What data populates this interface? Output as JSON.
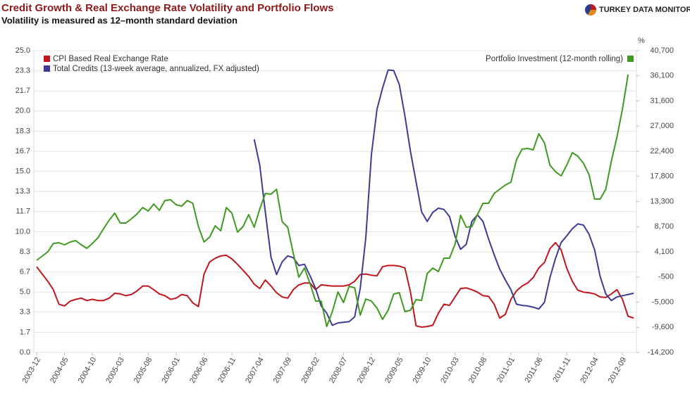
{
  "chart_data": {
    "type": "line",
    "title": "Credit Growth & Real Exchange Rate Volatility and Portfolio Flows",
    "subtitle": "Volatility is measured as 12–month standard deviation",
    "brand": "TURKEY DATA MONITOR",
    "y2_unit_label": "%",
    "grid": true,
    "categories": [
      "2003-12",
      null,
      null,
      null,
      null,
      "2004-05",
      null,
      null,
      null,
      null,
      "2004-10",
      null,
      null,
      null,
      null,
      "2005-03",
      null,
      null,
      null,
      null,
      "2005-08",
      null,
      null,
      null,
      null,
      "2006-01",
      null,
      null,
      null,
      null,
      "2006-06",
      null,
      null,
      null,
      null,
      "2006-11",
      null,
      null,
      null,
      null,
      "2007-04",
      null,
      null,
      null,
      null,
      "2007-09",
      null,
      null,
      null,
      null,
      "2008-02",
      null,
      null,
      null,
      null,
      "2008-07",
      null,
      null,
      null,
      null,
      "2008-12",
      null,
      null,
      null,
      null,
      "2009-05",
      null,
      null,
      null,
      null,
      "2009-10",
      null,
      null,
      null,
      null,
      "2010-03",
      null,
      null,
      null,
      null,
      "2010-08",
      null,
      null,
      null,
      null,
      "2011-01",
      null,
      null,
      null,
      null,
      "2011-06",
      null,
      null,
      null,
      null,
      "2011-11",
      null,
      null,
      null,
      null,
      "2012-04",
      null,
      null,
      null,
      null,
      "2012-09",
      null,
      null
    ],
    "ylim": [
      0,
      25
    ],
    "yticks": [
      {
        "value": 0,
        "label": "0.0"
      },
      {
        "value": 1.6667,
        "label": "1.7"
      },
      {
        "value": 3.3333,
        "label": "3.3"
      },
      {
        "value": 5,
        "label": "5.0"
      },
      {
        "value": 6.6667,
        "label": "6.7"
      },
      {
        "value": 8.3333,
        "label": "8.3"
      },
      {
        "value": 10,
        "label": "10.0"
      },
      {
        "value": 11.6667,
        "label": "11.7"
      },
      {
        "value": 13.3333,
        "label": "13.3"
      },
      {
        "value": 15,
        "label": "15.0"
      },
      {
        "value": 16.6667,
        "label": "16.7"
      },
      {
        "value": 18.3333,
        "label": "18.3"
      },
      {
        "value": 20,
        "label": "20.0"
      },
      {
        "value": 21.6667,
        "label": "21.7"
      },
      {
        "value": 23.3333,
        "label": "23.3"
      },
      {
        "value": 25,
        "label": "25.0"
      }
    ],
    "y2lim": [
      -14200,
      40700
    ],
    "y2ticks": [
      {
        "value": -14200,
        "label": "-14,200"
      },
      {
        "value": -9625,
        "label": "-9,600"
      },
      {
        "value": -5050,
        "label": "-5,000"
      },
      {
        "value": -475,
        "label": "-500"
      },
      {
        "value": 4100,
        "label": "4,100"
      },
      {
        "value": 8675,
        "label": "8,700"
      },
      {
        "value": 13250,
        "label": "13,300"
      },
      {
        "value": 17825,
        "label": "17,800"
      },
      {
        "value": 22400,
        "label": "22,400"
      },
      {
        "value": 26975,
        "label": "27,000"
      },
      {
        "value": 31550,
        "label": "31,600"
      },
      {
        "value": 36125,
        "label": "36,100"
      },
      {
        "value": 40700,
        "label": "40,700"
      }
    ],
    "series": [
      {
        "name": "CPI Based Real Exchange Rate",
        "color": "#c0161d",
        "legend": "left",
        "values": [
          7.1,
          6.5,
          5.9,
          5.2,
          4.0,
          3.85,
          4.25,
          4.4,
          4.5,
          4.3,
          4.4,
          4.3,
          4.3,
          4.5,
          4.9,
          4.85,
          4.7,
          4.8,
          5.1,
          5.5,
          5.5,
          5.2,
          4.85,
          4.7,
          4.4,
          4.5,
          4.8,
          4.7,
          4.1,
          3.8,
          6.5,
          7.5,
          7.8,
          8.0,
          8.05,
          7.75,
          7.3,
          6.8,
          6.3,
          5.65,
          5.3,
          6.0,
          5.5,
          4.95,
          4.6,
          4.5,
          5.2,
          5.6,
          5.75,
          5.75,
          5.2,
          5.6,
          5.55,
          5.5,
          5.5,
          5.5,
          5.6,
          5.9,
          6.45,
          6.5,
          6.4,
          6.35,
          7.1,
          7.2,
          7.2,
          7.15,
          7.0,
          5.0,
          2.2,
          2.1,
          2.15,
          2.25,
          3.25,
          4.0,
          3.9,
          4.6,
          5.3,
          5.35,
          5.2,
          5.0,
          4.7,
          4.65,
          4.0,
          2.85,
          3.15,
          4.4,
          5.1,
          5.5,
          5.75,
          6.2,
          7.0,
          7.45,
          8.6,
          9.1,
          8.5,
          7.0,
          5.9,
          5.15,
          5.0,
          4.95,
          4.85,
          4.6,
          4.55,
          4.85,
          5.2,
          4.4,
          3.0,
          2.85
        ]
      },
      {
        "name": "Total Credits (13-week average, annualized, FX adjusted)",
        "color": "#3c3c96",
        "legend": "left",
        "values": [
          null,
          null,
          null,
          null,
          null,
          null,
          null,
          null,
          null,
          null,
          null,
          null,
          null,
          null,
          null,
          null,
          null,
          null,
          null,
          null,
          null,
          null,
          null,
          null,
          null,
          null,
          null,
          null,
          null,
          null,
          null,
          null,
          null,
          null,
          null,
          null,
          null,
          null,
          null,
          17.65,
          15.5,
          11.6,
          7.9,
          6.45,
          7.5,
          8.0,
          7.85,
          7.2,
          7.3,
          6.35,
          5.3,
          3.85,
          3.25,
          2.25,
          2.45,
          2.5,
          2.55,
          2.95,
          5.3,
          9.5,
          16.4,
          20.15,
          21.9,
          23.4,
          23.35,
          22.2,
          19.6,
          16.65,
          14.15,
          11.65,
          10.85,
          11.6,
          11.95,
          11.85,
          11.25,
          9.6,
          8.55,
          8.95,
          10.85,
          11.4,
          10.85,
          9.4,
          8.1,
          6.9,
          6.0,
          5.2,
          4.0,
          3.9,
          3.85,
          3.75,
          3.6,
          4.15,
          6.2,
          7.8,
          9.1,
          9.65,
          10.25,
          10.65,
          10.55,
          9.8,
          8.5,
          6.3,
          4.85,
          4.3,
          4.6,
          4.7,
          4.8,
          4.9
        ]
      },
      {
        "name": "Portfolio Investment (12-month rolling)",
        "color": "#3f9b1f",
        "axis": "y2",
        "legend": "right",
        "values": [
          2560,
          3330,
          4100,
          5640,
          5760,
          5380,
          5890,
          6150,
          5380,
          4740,
          5640,
          6660,
          8320,
          9860,
          11140,
          9350,
          9350,
          10110,
          11010,
          12160,
          11520,
          12800,
          11650,
          13440,
          13570,
          12670,
          12420,
          13440,
          12930,
          8710,
          5890,
          6790,
          8840,
          7940,
          12160,
          11140,
          7680,
          8710,
          10880,
          8580,
          11900,
          14720,
          14590,
          15490,
          9600,
          8580,
          3840,
          -510,
          1160,
          -1660,
          -4860,
          -4860,
          -9460,
          -6780,
          -3200,
          -5120,
          -2170,
          -2430,
          -7420,
          -4470,
          -4860,
          -6140,
          -8190,
          -6520,
          -3580,
          -3320,
          -6780,
          -6520,
          -4600,
          -4730,
          130,
          1160,
          520,
          2950,
          2950,
          5510,
          10750,
          8580,
          8710,
          10880,
          12930,
          12930,
          14720,
          15490,
          16260,
          16770,
          20860,
          22780,
          22910,
          22650,
          25600,
          23940,
          19840,
          18690,
          17920,
          19840,
          22140,
          21500,
          20220,
          18170,
          13700,
          13700,
          15490,
          20610,
          24960,
          30080,
          36350,
          null
        ]
      }
    ]
  }
}
